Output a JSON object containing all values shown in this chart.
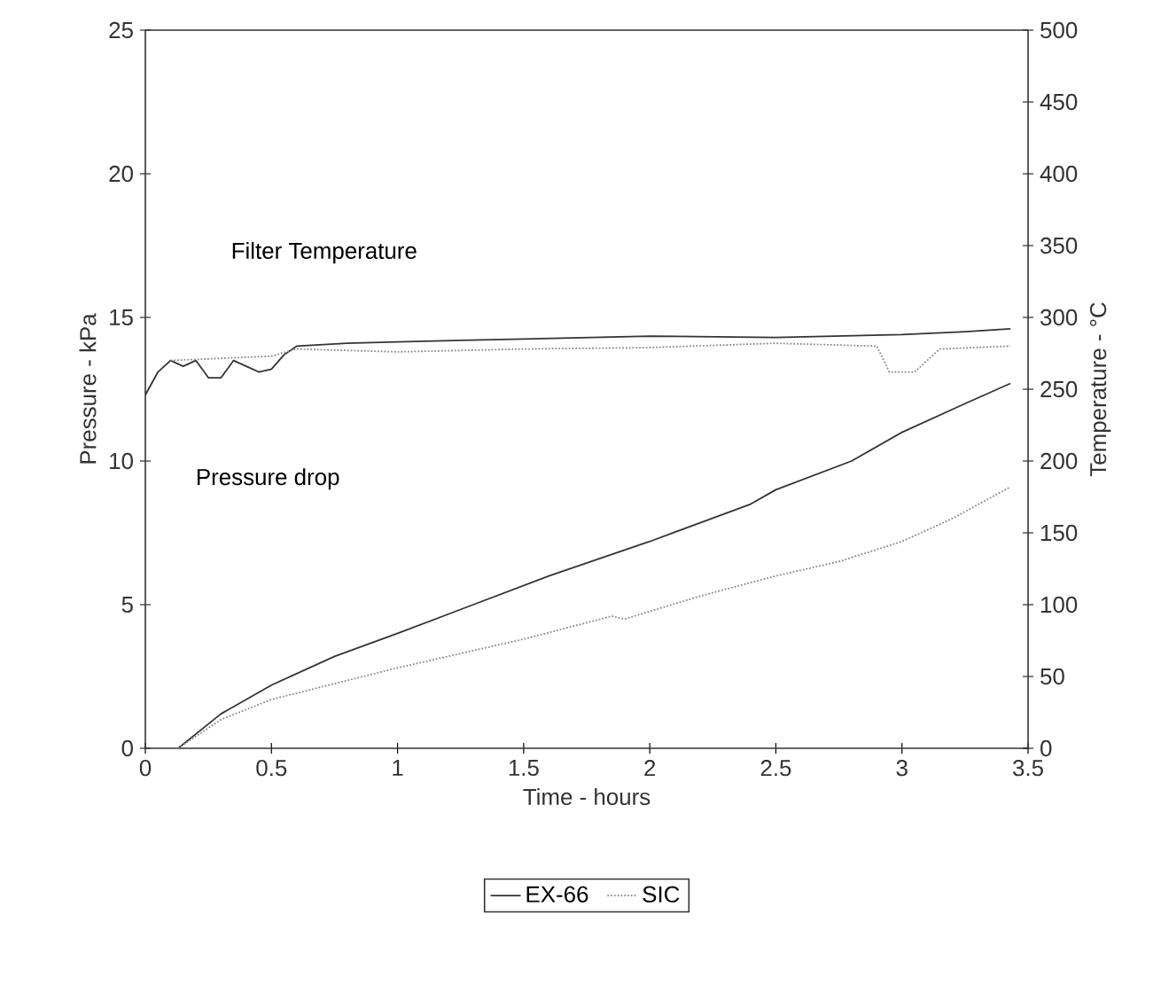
{
  "chart_data": {
    "type": "line",
    "xlabel": "Time - hours",
    "ylabel": "Pressure - kPa",
    "y2label": "Temperature - °C",
    "xlim": [
      0,
      3.5
    ],
    "xticks": [
      0,
      0.5,
      1,
      1.5,
      2,
      2.5,
      3,
      3.5
    ],
    "ylim": [
      0,
      25
    ],
    "yticks": [
      0,
      5,
      10,
      15,
      20,
      25
    ],
    "y2lim": [
      0,
      500
    ],
    "y2ticks": [
      0,
      50,
      100,
      150,
      200,
      250,
      300,
      350,
      400,
      450,
      500
    ],
    "legend": "bottom",
    "annotations": [
      "Filter Temperature",
      "Pressure drop"
    ],
    "series": [
      {
        "name": "EX-66",
        "color": "#333333",
        "line_style": "solid",
        "x": [
          0.13,
          0.3,
          0.5,
          0.75,
          1.0,
          1.3,
          1.6,
          2.0,
          2.4,
          2.5,
          2.8,
          3.0,
          3.25,
          3.43
        ],
        "values": [
          0,
          1.2,
          2.2,
          3.2,
          4.0,
          5.0,
          6.0,
          7.2,
          8.5,
          9.0,
          10.0,
          11.0,
          12.0,
          12.7
        ]
      },
      {
        "name": "SIC",
        "color": "#888888",
        "line_style": "dotted",
        "x": [
          0.13,
          0.3,
          0.5,
          1.0,
          1.5,
          1.85,
          1.9,
          2.2,
          2.5,
          2.75,
          3.0,
          3.2,
          3.43
        ],
        "values": [
          0,
          1.0,
          1.7,
          2.8,
          3.8,
          4.6,
          4.5,
          5.3,
          6.0,
          6.5,
          7.2,
          8.0,
          9.1
        ]
      },
      {
        "axis": "y2",
        "color": "#333333",
        "line_style": "solid",
        "x": [
          0,
          0.05,
          0.1,
          0.15,
          0.2,
          0.25,
          0.3,
          0.35,
          0.4,
          0.45,
          0.5,
          0.55,
          0.6,
          0.8,
          1.0,
          1.5,
          2.0,
          2.5,
          3.0,
          3.25,
          3.43
        ],
        "values": [
          246,
          262,
          270,
          266,
          270,
          258,
          258,
          270,
          266,
          262,
          264,
          274,
          280,
          282,
          283,
          285,
          287,
          286,
          288,
          290,
          292
        ]
      },
      {
        "axis": "y2",
        "color": "#888888",
        "line_style": "dotted",
        "x": [
          0.1,
          0.5,
          0.6,
          1.0,
          1.5,
          2.0,
          2.5,
          2.9,
          2.95,
          3.05,
          3.15,
          3.43
        ],
        "values": [
          270,
          273,
          278,
          276,
          278,
          279,
          282,
          280,
          262,
          262,
          278,
          280
        ]
      }
    ]
  }
}
